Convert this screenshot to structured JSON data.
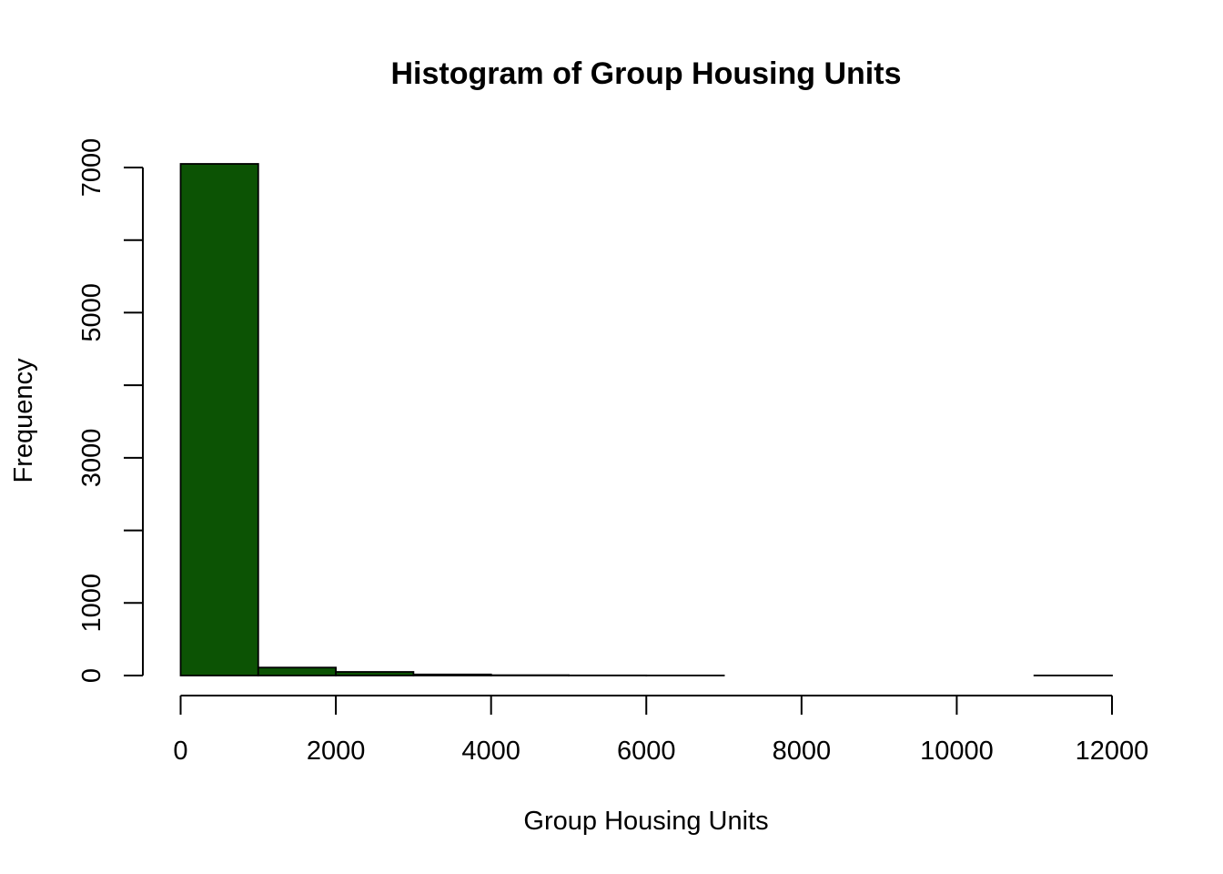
{
  "colors": {
    "bar_fill": "#0c5304",
    "bar_stroke": "#000000",
    "background": "#ffffff"
  },
  "chart_data": {
    "type": "bar",
    "title": "Histogram of Group Housing Units",
    "xlabel": "Group Housing Units",
    "ylabel": "Frequency",
    "bins": [
      {
        "start": 0,
        "end": 1000,
        "count": 7050
      },
      {
        "start": 1000,
        "end": 2000,
        "count": 110
      },
      {
        "start": 2000,
        "end": 3000,
        "count": 50
      },
      {
        "start": 3000,
        "end": 4000,
        "count": 15
      },
      {
        "start": 4000,
        "end": 5000,
        "count": 5
      },
      {
        "start": 5000,
        "end": 6000,
        "count": 2
      },
      {
        "start": 6000,
        "end": 7000,
        "count": 1
      },
      {
        "start": 7000,
        "end": 8000,
        "count": 0
      },
      {
        "start": 8000,
        "end": 9000,
        "count": 0
      },
      {
        "start": 9000,
        "end": 10000,
        "count": 0
      },
      {
        "start": 10000,
        "end": 11000,
        "count": 0
      },
      {
        "start": 11000,
        "end": 12000,
        "count": 1
      }
    ],
    "xlim": [
      0,
      12000
    ],
    "ylim": [
      0,
      7000
    ],
    "x_ticks": [
      "0",
      "2000",
      "4000",
      "6000",
      "8000",
      "10000",
      "12000"
    ],
    "y_ticks": [
      0,
      1000,
      2000,
      3000,
      4000,
      5000,
      6000,
      7000
    ],
    "y_tick_labels": [
      "0",
      "1000",
      "3000",
      "5000",
      "7000"
    ],
    "grid": false,
    "legend": "none"
  }
}
